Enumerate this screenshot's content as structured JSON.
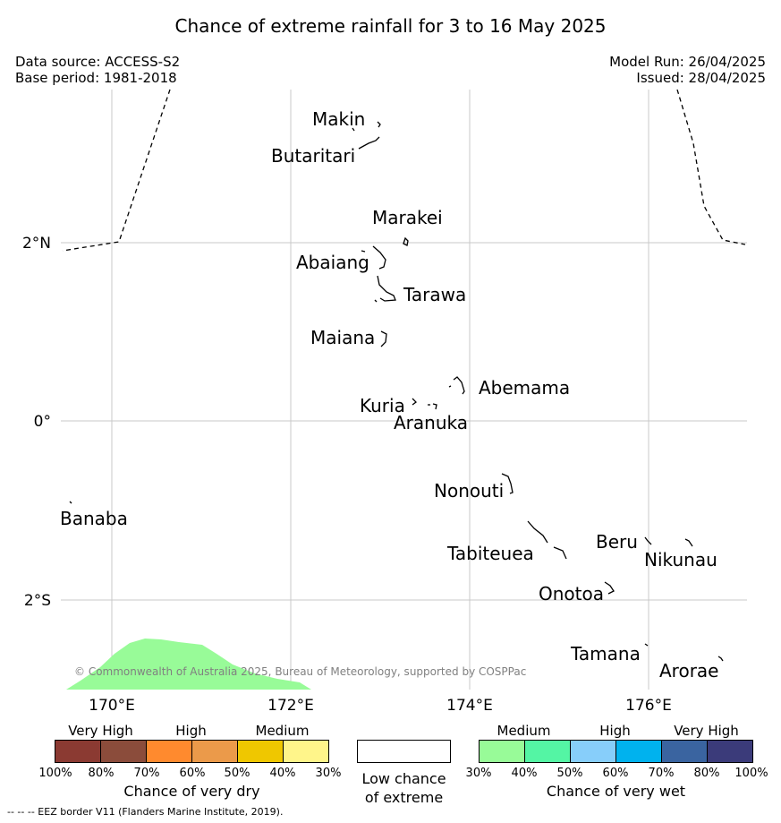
{
  "title": "Chance of extreme rainfall for 3 to 16 May 2025",
  "data_source": "Data source: ACCESS-S2",
  "base_period": "Base period: 1981-2018",
  "model_run": "Model Run: 26/04/2025",
  "issued": "Issued: 28/04/2025",
  "copyright": "© Commonwealth of Australia 2025, Bureau of Meteorology, supported by COSPPac",
  "map": {
    "lat_labels": [
      "2°N",
      "0°",
      "2°S"
    ],
    "lon_labels": [
      "170°E",
      "172°E",
      "174°E",
      "176°E"
    ],
    "islands": [
      "Makin",
      "Butaritari",
      "Marakei",
      "Abaiang",
      "Tarawa",
      "Maiana",
      "Abemama",
      "Kuria",
      "Aranuka",
      "Nonouti",
      "Banaba",
      "Tabiteuea",
      "Beru",
      "Nikunau",
      "Onotoa",
      "Tamana",
      "Arorae"
    ],
    "wet_shading_color": "#98fb98"
  },
  "legend": {
    "dry": {
      "categories": [
        "Very High",
        "High",
        "Medium"
      ],
      "colors": [
        "#8b3a32",
        "#8b4c3b",
        "#ff8a2e",
        "#eb9a4a",
        "#efc700",
        "#fff58a"
      ],
      "ticks": [
        "100%",
        "80%",
        "70%",
        "60%",
        "50%",
        "40%",
        "30%"
      ],
      "caption": "Chance of very dry"
    },
    "low": {
      "color": "#ffffff",
      "caption_line1": "Low chance",
      "caption_line2": "of extreme"
    },
    "wet": {
      "categories": [
        "Medium",
        "High",
        "Very High"
      ],
      "colors": [
        "#98fb98",
        "#54f5a4",
        "#87cefa",
        "#00b2ee",
        "#3a64a0",
        "#3b3b7a"
      ],
      "ticks": [
        "30%",
        "40%",
        "50%",
        "60%",
        "70%",
        "80%",
        "100%"
      ],
      "caption": "Chance of very wet"
    }
  },
  "footer": "--  --  -- EEZ border V11 (Flanders Marine Institute, 2019)."
}
